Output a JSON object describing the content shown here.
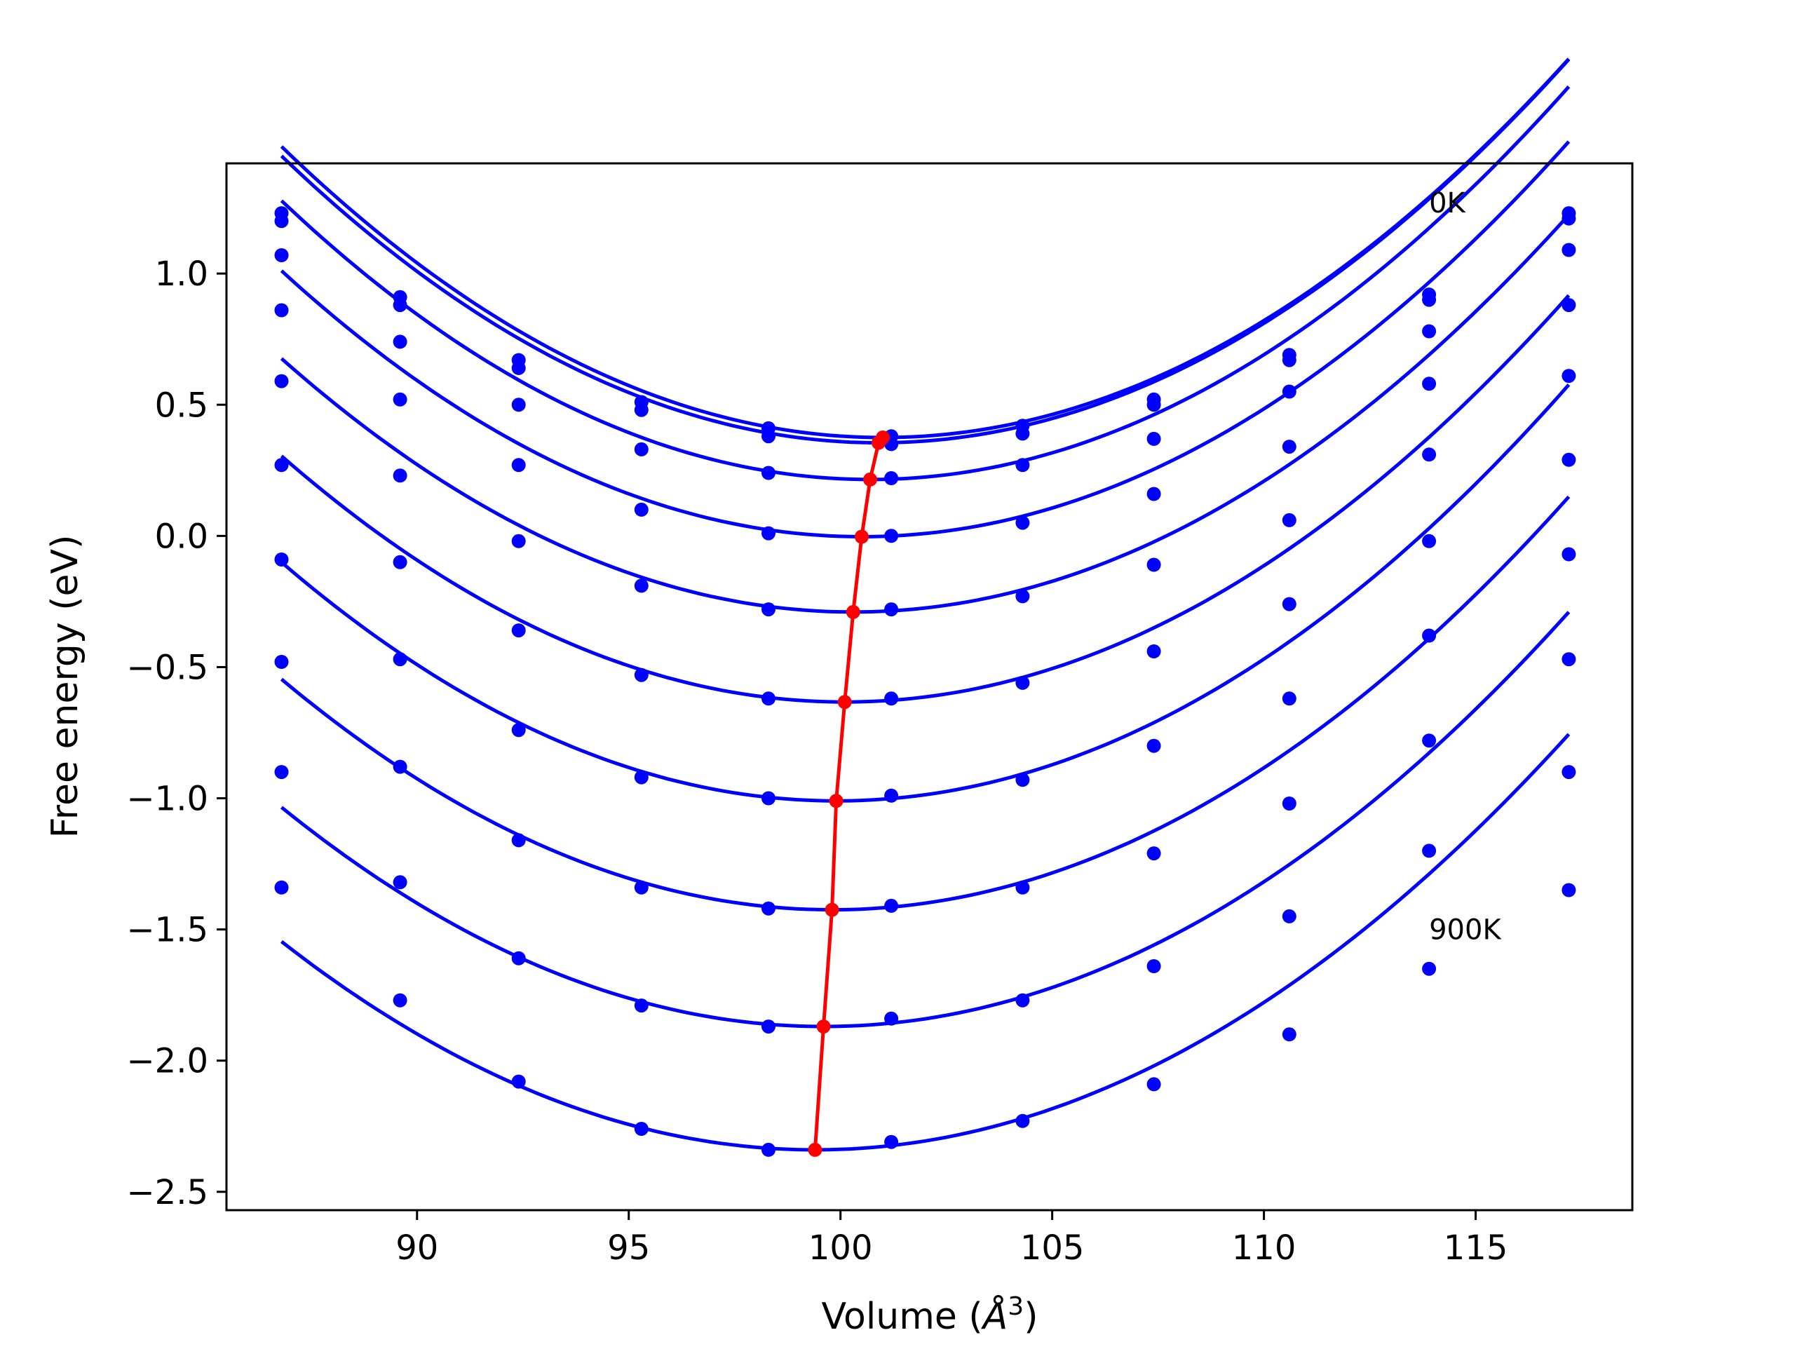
{
  "chart_data": {
    "type": "line",
    "title": "",
    "xlabel_parts": [
      "Volume (",
      "Å",
      "3",
      ")"
    ],
    "ylabel": "Free energy (eV)",
    "xlim": [
      85.5,
      118.7
    ],
    "ylim": [
      -2.57,
      1.42
    ],
    "xticks": [
      90,
      95,
      100,
      105,
      110,
      115
    ],
    "xtick_labels": [
      "90",
      "95",
      "100",
      "105",
      "110",
      "115"
    ],
    "yticks": [
      -2.5,
      -2.0,
      -1.5,
      -1.0,
      -0.5,
      0.0,
      0.5,
      1.0
    ],
    "ytick_labels": [
      "−2.5",
      "−2.0",
      "−1.5",
      "−1.0",
      "−0.5",
      "0.0",
      "0.5",
      "1.0"
    ],
    "grid": false,
    "colors": {
      "curves": "#0000ff",
      "minimum_line": "#ff0000"
    },
    "annotations": [
      {
        "text": "0K",
        "x": 113.9,
        "y": 1.27
      },
      {
        "text": "900K",
        "x": 113.9,
        "y": -1.5
      }
    ],
    "volumes": [
      86.8,
      89.6,
      92.4,
      95.3,
      98.3,
      101.2,
      104.3,
      107.4,
      110.6,
      113.9,
      117.2
    ],
    "series": [
      {
        "values": [
          1.23,
          0.91,
          0.67,
          0.51,
          0.41,
          0.38,
          0.42,
          0.52,
          0.69,
          0.92,
          1.23
        ],
        "fit": {
          "a": 0.0055,
          "vmin": 101.0,
          "emin": 0.375
        }
      },
      {
        "values": [
          1.2,
          0.88,
          0.64,
          0.48,
          0.38,
          0.35,
          0.39,
          0.5,
          0.67,
          0.9,
          1.21
        ],
        "fit": {
          "a": 0.0055,
          "vmin": 100.9,
          "emin": 0.355
        }
      },
      {
        "values": [
          1.07,
          0.74,
          0.5,
          0.33,
          0.24,
          0.22,
          0.27,
          0.37,
          0.55,
          0.78,
          1.09
        ],
        "fit": {
          "a": 0.0055,
          "vmin": 100.7,
          "emin": 0.215
        }
      },
      {
        "values": [
          0.86,
          0.52,
          0.27,
          0.1,
          0.01,
          0.0,
          0.05,
          0.16,
          0.34,
          0.58,
          0.88
        ],
        "fit": {
          "a": 0.0054,
          "vmin": 100.5,
          "emin": -0.003
        }
      },
      {
        "values": [
          0.59,
          0.23,
          -0.02,
          -0.19,
          -0.28,
          -0.28,
          -0.23,
          -0.11,
          0.06,
          0.31,
          0.61
        ],
        "fit": {
          "a": 0.0053,
          "vmin": 100.3,
          "emin": -0.29
        }
      },
      {
        "values": [
          0.27,
          -0.1,
          -0.36,
          -0.53,
          -0.62,
          -0.62,
          -0.56,
          -0.44,
          -0.26,
          -0.02,
          0.29
        ],
        "fit": {
          "a": 0.0053,
          "vmin": 100.1,
          "emin": -0.633
        }
      },
      {
        "values": [
          -0.09,
          -0.47,
          -0.74,
          -0.92,
          -1.0,
          -0.99,
          -0.93,
          -0.8,
          -0.62,
          -0.38,
          -0.07
        ],
        "fit": {
          "a": 0.0053,
          "vmin": 99.9,
          "emin": -1.01
        }
      },
      {
        "values": [
          -0.48,
          -0.88,
          -1.16,
          -1.34,
          -1.42,
          -1.41,
          -1.34,
          -1.21,
          -1.02,
          -0.78,
          -0.47
        ],
        "fit": {
          "a": 0.0052,
          "vmin": 99.8,
          "emin": -1.425
        }
      },
      {
        "values": [
          -0.9,
          -1.32,
          -1.61,
          -1.79,
          -1.87,
          -1.84,
          -1.77,
          -1.64,
          -1.45,
          -1.2,
          -0.9
        ],
        "fit": {
          "a": 0.0051,
          "vmin": 99.6,
          "emin": -1.87
        }
      },
      {
        "values": [
          -1.34,
          -1.77,
          -2.08,
          -2.26,
          -2.34,
          -2.31,
          -2.23,
          -2.09,
          -1.9,
          -1.65,
          -1.35
        ],
        "fit": {
          "a": 0.005,
          "vmin": 99.4,
          "emin": -2.34
        }
      }
    ],
    "minimum_path": {
      "x": [
        101.0,
        100.9,
        100.7,
        100.5,
        100.3,
        100.1,
        99.9,
        99.8,
        99.6,
        99.4
      ],
      "y": [
        0.375,
        0.355,
        0.215,
        -0.003,
        -0.29,
        -0.633,
        -1.01,
        -1.425,
        -1.87,
        -2.34
      ]
    }
  }
}
